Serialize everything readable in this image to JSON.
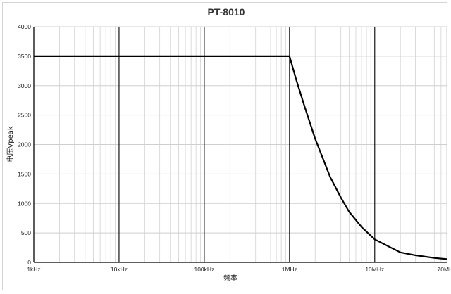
{
  "chart_data": {
    "type": "line",
    "title": "PT-8010",
    "xlabel": "频率",
    "ylabel": "电压Vpeak",
    "x_scale": "log",
    "xlim": [
      1000,
      70000000
    ],
    "ylim": [
      0,
      4000
    ],
    "x_ticks": [
      {
        "value": 1000,
        "label": "1kHz"
      },
      {
        "value": 10000,
        "label": "10kHz"
      },
      {
        "value": 100000,
        "label": "100kHz"
      },
      {
        "value": 1000000,
        "label": "1MHz"
      },
      {
        "value": 10000000,
        "label": "10MHz"
      },
      {
        "value": 70000000,
        "label": "70MHz"
      }
    ],
    "y_ticks": [
      0,
      500,
      1000,
      1500,
      2000,
      2500,
      3000,
      3500,
      4000
    ],
    "grid": true,
    "line_color": "#000000",
    "series": [
      {
        "x": [
          1000,
          10000,
          100000,
          1000000,
          1200000,
          1500000,
          2000000,
          3000000,
          4000000,
          5000000,
          7000000,
          10000000,
          15000000,
          20000000,
          30000000,
          50000000,
          70000000
        ],
        "y": [
          3500,
          3500,
          3500,
          3500,
          3100,
          2650,
          2100,
          1450,
          1100,
          860,
          600,
          390,
          260,
          170,
          120,
          75,
          55
        ]
      }
    ]
  }
}
